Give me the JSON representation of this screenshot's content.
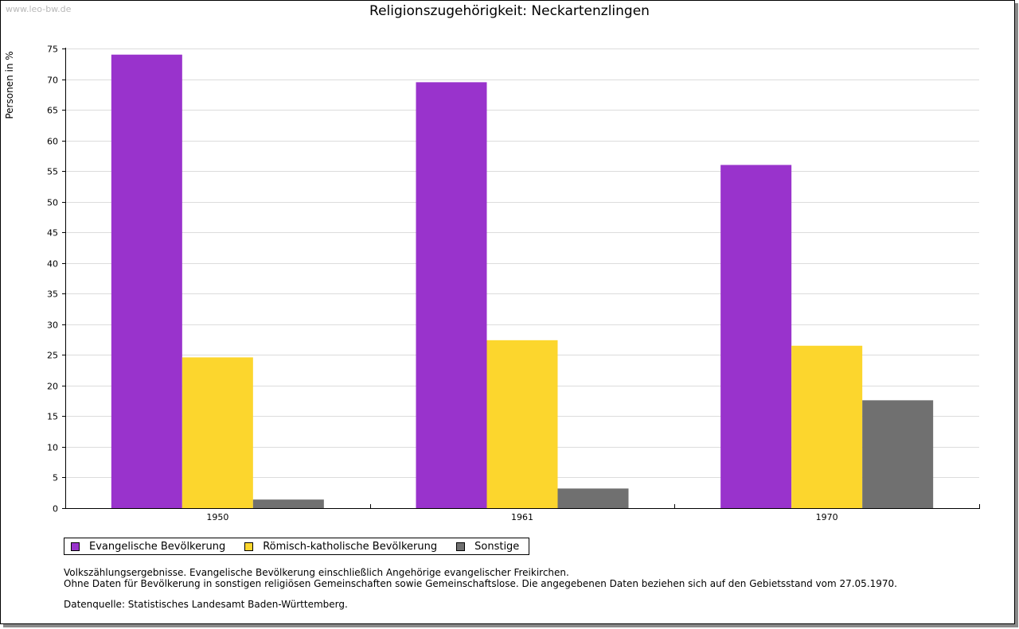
{
  "watermark": "www.leo-bw.de",
  "chart_data": {
    "type": "bar",
    "title": "Religionszugehörigkeit: Neckartenzlingen",
    "ylabel": "Personen in %",
    "xlabel": "",
    "ylim": [
      0,
      75
    ],
    "yticks": [
      0,
      5,
      10,
      15,
      20,
      25,
      30,
      35,
      40,
      45,
      50,
      55,
      60,
      65,
      70,
      75
    ],
    "grid": true,
    "legend_position": "bottom-left",
    "categories": [
      "1950",
      "1961",
      "1970"
    ],
    "series": [
      {
        "name": "Evangelische Bevölkerung",
        "color": "#9933cc",
        "values": [
          74.0,
          69.5,
          56.0
        ]
      },
      {
        "name": "Römisch-katholische Bevölkerung",
        "color": "#fcd62d",
        "values": [
          24.6,
          27.4,
          26.5
        ]
      },
      {
        "name": "Sonstige",
        "color": "#707070",
        "values": [
          1.4,
          3.2,
          17.6
        ]
      }
    ]
  },
  "notes": {
    "line1": "Volkszählungsergebnisse. Evangelische Bevölkerung einschließlich Angehörige evangelischer Freikirchen.",
    "line2": "Ohne Daten für Bevölkerung in sonstigen religiösen Gemeinschaften sowie Gemeinschaftslose. Die angegebenen Daten beziehen sich auf den Gebietsstand vom 27.05.1970.",
    "source": "Datenquelle: Statistisches Landesamt Baden-Württemberg."
  }
}
